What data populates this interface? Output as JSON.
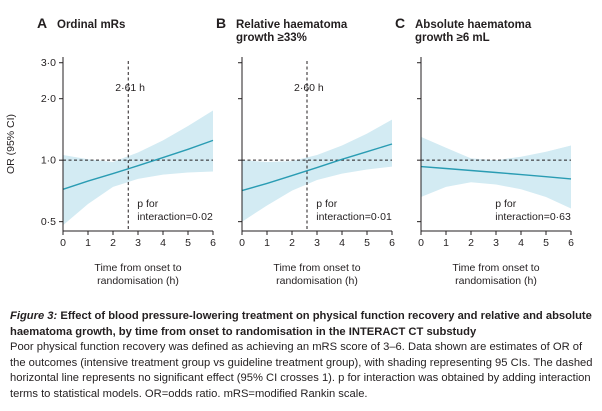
{
  "chart_data": [
    {
      "type": "line",
      "panel_letter": "A",
      "title_lines": [
        "Ordinal mRs"
      ],
      "ylabel": "OR (95% CI)",
      "yscale": "log",
      "yticks": [
        "3·0",
        "2·0",
        "1·0",
        "0·5"
      ],
      "ytick_values": [
        3.0,
        2.0,
        1.0,
        0.5
      ],
      "ylim": [
        0.45,
        3.2
      ],
      "xlabel": [
        "Time from onset to",
        "randomisation (h)"
      ],
      "xticks": [
        "0",
        "1",
        "2",
        "3",
        "4",
        "5",
        "6"
      ],
      "xlim": [
        0,
        6
      ],
      "reference_line": 1.0,
      "vline": {
        "x": 2.61,
        "label": "2·61 h"
      },
      "p_label": [
        "p for",
        "interaction=0·02"
      ],
      "series": [
        {
          "name": "OR estimate",
          "x": [
            0,
            1,
            2,
            3,
            4,
            5,
            6
          ],
          "values": [
            0.72,
            0.79,
            0.86,
            0.94,
            1.03,
            1.13,
            1.25
          ],
          "ci_lower": [
            0.48,
            0.61,
            0.74,
            0.81,
            0.85,
            0.87,
            0.88
          ],
          "ci_upper": [
            1.06,
            1.01,
            0.98,
            1.09,
            1.25,
            1.47,
            1.75
          ]
        }
      ]
    },
    {
      "type": "line",
      "panel_letter": "B",
      "title_lines": [
        "Relative haematoma",
        "growth ≥33%"
      ],
      "yscale": "log",
      "ylim": [
        0.45,
        3.2
      ],
      "xlabel": [
        "Time from onset to",
        "randomisation (h)"
      ],
      "xticks": [
        "0",
        "1",
        "2",
        "3",
        "4",
        "5",
        "6"
      ],
      "xlim": [
        0,
        6
      ],
      "reference_line": 1.0,
      "vline": {
        "x": 2.6,
        "label": "2·60 h"
      },
      "p_label": [
        "p for",
        "interaction=0·01"
      ],
      "series": [
        {
          "name": "OR estimate",
          "x": [
            0,
            1,
            2,
            3,
            4,
            5,
            6
          ],
          "values": [
            0.71,
            0.77,
            0.84,
            0.92,
            1.01,
            1.1,
            1.2
          ],
          "ci_lower": [
            0.5,
            0.6,
            0.71,
            0.8,
            0.86,
            0.9,
            0.93
          ],
          "ci_upper": [
            1.0,
            0.98,
            0.99,
            1.06,
            1.18,
            1.35,
            1.58
          ]
        }
      ]
    },
    {
      "type": "line",
      "panel_letter": "C",
      "title_lines": [
        "Absolute haematoma",
        "growth ≥6 mL"
      ],
      "yscale": "log",
      "ylim": [
        0.45,
        3.2
      ],
      "xlabel": [
        "Time from onset to",
        "randomisation (h)"
      ],
      "xticks": [
        "0",
        "1",
        "2",
        "3",
        "4",
        "5",
        "6"
      ],
      "xlim": [
        0,
        6
      ],
      "reference_line": 1.0,
      "p_label": [
        "p for",
        "interaction=0·63"
      ],
      "series": [
        {
          "name": "OR estimate",
          "x": [
            0,
            1,
            2,
            3,
            4,
            5,
            6
          ],
          "values": [
            0.93,
            0.91,
            0.89,
            0.87,
            0.85,
            0.83,
            0.81
          ],
          "ci_lower": [
            0.66,
            0.74,
            0.78,
            0.76,
            0.72,
            0.66,
            0.58
          ],
          "ci_upper": [
            1.3,
            1.15,
            1.02,
            1.0,
            1.04,
            1.1,
            1.18
          ]
        }
      ]
    }
  ],
  "caption": {
    "figure_label": "Figure 3:",
    "title": "Effect of blood pressure-lowering treatment on physical function recovery and relative and absolute haematoma growth, by time from onset to randomisation in the INTERACT CT substudy",
    "body": "Poor physical function recovery was defined as achieving an mRS score of 3–6. Data shown are estimates of OR of the outcomes (intensive treatment group vs guideline treatment group), with shading representing 95 CIs. The dashed horizontal line represents no significant effect (95% CI crosses 1). p for interaction was obtained by adding interaction terms to statistical models. OR=odds ratio. mRS=modified Rankin scale."
  },
  "colors": {
    "line": "#2a9cb3",
    "band": "#d3ebf3",
    "axis": "#231f20",
    "panel_letter": "#231f20"
  }
}
